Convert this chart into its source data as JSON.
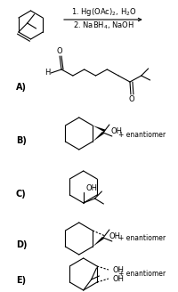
{
  "bg_color": "#ffffff",
  "fig_width": 2.0,
  "fig_height": 3.28,
  "dpi": 100,
  "reagent1": "1. Hg(OAc)$_2$, H$_2$O",
  "reagent2": "2. NaBH$_4$, NaOH",
  "labels": [
    "A)",
    "B)",
    "C)",
    "D)",
    "E)"
  ],
  "enantiomer_text": "+ enantiomer",
  "font_size_label": 7,
  "font_size_reagent": 6.0,
  "font_size_enantiomer": 5.5,
  "font_size_atom": 6.0
}
